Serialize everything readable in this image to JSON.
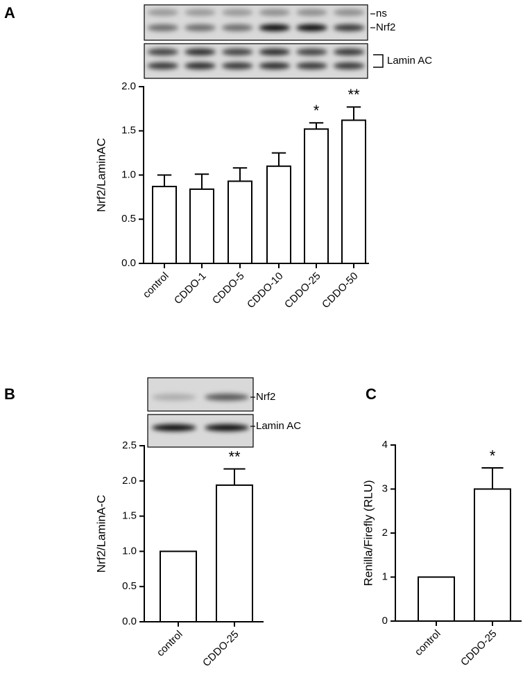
{
  "chart_data": [
    {
      "type": "bar",
      "panel_label": "A",
      "ylabel": "Nrf2/LaminAC",
      "categories": [
        "control",
        "CDDO-1",
        "CDDO-5",
        "CDDO-10",
        "CDDO-25",
        "CDDO-50"
      ],
      "values": [
        0.87,
        0.84,
        0.93,
        1.1,
        1.52,
        1.62
      ],
      "errors": [
        0.13,
        0.17,
        0.15,
        0.15,
        0.07,
        0.15
      ],
      "significance": [
        null,
        null,
        null,
        null,
        "*",
        "**"
      ],
      "color": "#ffffff",
      "edgecolor": "#000000",
      "ylim": [
        0,
        2
      ],
      "yticks": [
        {
          "value": 0,
          "label": "0.0"
        },
        {
          "value": 0.5,
          "label": "0.5"
        },
        {
          "value": 1,
          "label": "1.0"
        },
        {
          "value": 1.5,
          "label": "1.5"
        },
        {
          "value": 2,
          "label": "2.0"
        }
      ],
      "blot_labels": [
        "ns",
        "Nrf2",
        "Lamin AC"
      ]
    },
    {
      "type": "bar",
      "panel_label": "B",
      "ylabel": "Nrf2/LaminA-C",
      "categories": [
        "control",
        "CDDO-25"
      ],
      "values": [
        1.0,
        1.94
      ],
      "errors": [
        null,
        0.23
      ],
      "significance": [
        null,
        "**"
      ],
      "color": "#ffffff",
      "edgecolor": "#000000",
      "ylim": [
        0,
        2.5
      ],
      "yticks": [
        {
          "value": 0,
          "label": "0.0"
        },
        {
          "value": 0.5,
          "label": "0.5"
        },
        {
          "value": 1,
          "label": "1.0"
        },
        {
          "value": 1.5,
          "label": "1.5"
        },
        {
          "value": 2,
          "label": "2.0"
        },
        {
          "value": 2.5,
          "label": "2.5"
        }
      ],
      "blot_labels": [
        "Nrf2",
        "Lamin AC"
      ]
    },
    {
      "type": "bar",
      "panel_label": "C",
      "ylabel": "Renilla/Firefly (RLU)",
      "categories": [
        "control",
        "CDDO-25"
      ],
      "values": [
        1,
        3.0
      ],
      "errors": [
        null,
        0.48
      ],
      "significance": [
        null,
        "*"
      ],
      "color": "#ffffff",
      "edgecolor": "#000000",
      "ylim": [
        0,
        4
      ],
      "yticks": [
        0,
        1,
        2,
        3,
        4
      ]
    }
  ]
}
